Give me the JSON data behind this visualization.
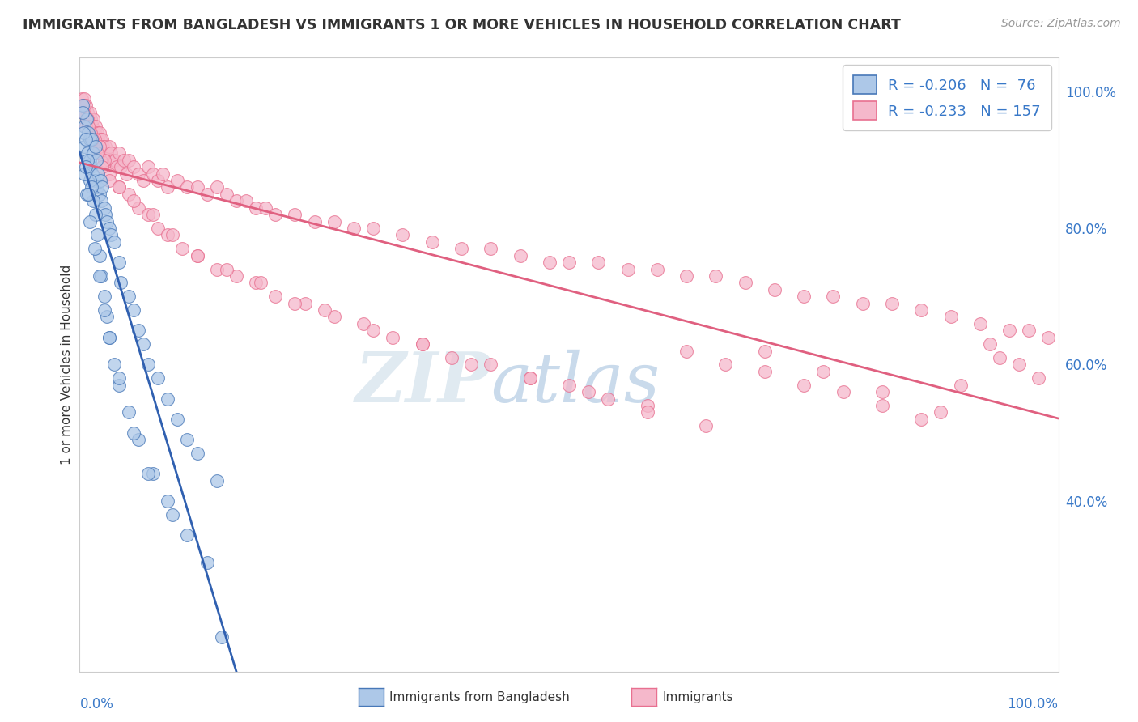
{
  "title": "IMMIGRANTS FROM BANGLADESH VS IMMIGRANTS 1 OR MORE VEHICLES IN HOUSEHOLD CORRELATION CHART",
  "source": "Source: ZipAtlas.com",
  "ylabel": "1 or more Vehicles in Household",
  "watermark_zip": "ZIP",
  "watermark_atlas": "atlas",
  "legend_blue_label": "Immigrants from Bangladesh",
  "legend_pink_label": "Immigrants",
  "legend_blue_R": "R = -0.206",
  "legend_blue_N": "N =  76",
  "legend_pink_R": "R = -0.233",
  "legend_pink_N": "N = 157",
  "blue_fill": "#adc8e8",
  "blue_edge": "#4878b8",
  "blue_line": "#3060b0",
  "pink_fill": "#f5b8cb",
  "pink_edge": "#e87090",
  "pink_line": "#e06080",
  "diag_color": "#a8c8e0",
  "axis_label_color": "#3878c8",
  "title_color": "#333333",
  "bg_color": "#ffffff",
  "grid_color": "#d8d8d8",
  "ytick_labels": [
    "40.0%",
    "60.0%",
    "80.0%",
    "100.0%"
  ],
  "ytick_vals": [
    40,
    60,
    80,
    100
  ],
  "xlim": [
    0,
    100
  ],
  "ylim": [
    15,
    105
  ],
  "blue_x": [
    0.3,
    0.5,
    0.5,
    0.7,
    0.8,
    0.9,
    1.0,
    1.0,
    1.1,
    1.2,
    1.3,
    1.4,
    1.5,
    1.6,
    1.7,
    1.8,
    1.9,
    2.0,
    2.1,
    2.2,
    2.3,
    2.5,
    2.6,
    2.8,
    3.0,
    3.2,
    3.5,
    4.0,
    4.2,
    5.0,
    5.5,
    6.0,
    6.5,
    7.0,
    8.0,
    9.0,
    10.0,
    11.0,
    12.0,
    14.0,
    0.4,
    0.6,
    0.8,
    1.0,
    1.2,
    1.4,
    1.6,
    1.8,
    2.0,
    2.2,
    2.5,
    2.8,
    3.0,
    3.5,
    4.0,
    5.0,
    6.0,
    7.5,
    9.0,
    11.0,
    0.5,
    0.7,
    1.0,
    1.5,
    2.0,
    2.5,
    3.0,
    4.0,
    5.5,
    7.0,
    9.5,
    13.0,
    0.3,
    0.6,
    0.9,
    14.5
  ],
  "blue_y": [
    98,
    95,
    92,
    96,
    91,
    94,
    93,
    90,
    89,
    93,
    88,
    91,
    87,
    92,
    90,
    86,
    88,
    85,
    87,
    84,
    86,
    83,
    82,
    81,
    80,
    79,
    78,
    75,
    72,
    70,
    68,
    65,
    63,
    60,
    58,
    55,
    52,
    49,
    47,
    43,
    94,
    93,
    90,
    87,
    86,
    84,
    82,
    79,
    76,
    73,
    70,
    67,
    64,
    60,
    57,
    53,
    49,
    44,
    40,
    35,
    88,
    85,
    81,
    77,
    73,
    68,
    64,
    58,
    50,
    44,
    38,
    31,
    97,
    89,
    85,
    20
  ],
  "pink_x": [
    0.2,
    0.3,
    0.4,
    0.5,
    0.5,
    0.6,
    0.7,
    0.8,
    0.9,
    1.0,
    1.0,
    1.1,
    1.2,
    1.3,
    1.4,
    1.5,
    1.6,
    1.7,
    1.8,
    1.9,
    2.0,
    2.1,
    2.2,
    2.3,
    2.4,
    2.5,
    2.6,
    2.7,
    2.8,
    3.0,
    3.0,
    3.2,
    3.4,
    3.6,
    3.8,
    4.0,
    4.2,
    4.5,
    4.8,
    5.0,
    5.5,
    6.0,
    6.5,
    7.0,
    7.5,
    8.0,
    8.5,
    9.0,
    10.0,
    11.0,
    12.0,
    13.0,
    14.0,
    15.0,
    16.0,
    17.0,
    18.0,
    19.0,
    20.0,
    22.0,
    24.0,
    26.0,
    28.0,
    30.0,
    33.0,
    36.0,
    39.0,
    42.0,
    45.0,
    48.0,
    50.0,
    53.0,
    56.0,
    59.0,
    62.0,
    65.0,
    68.0,
    71.0,
    74.0,
    77.0,
    80.0,
    83.0,
    86.0,
    89.0,
    92.0,
    95.0,
    97.0,
    99.0,
    0.4,
    0.6,
    0.8,
    1.1,
    1.5,
    2.0,
    2.5,
    3.0,
    4.0,
    5.0,
    6.0,
    7.0,
    8.0,
    9.0,
    10.5,
    12.0,
    14.0,
    16.0,
    18.0,
    20.0,
    23.0,
    26.0,
    29.0,
    32.0,
    35.0,
    38.0,
    42.0,
    46.0,
    50.0,
    54.0,
    58.0,
    62.0,
    66.0,
    70.0,
    74.0,
    78.0,
    82.0,
    86.0,
    90.0,
    94.0,
    0.5,
    0.9,
    1.3,
    1.8,
    2.3,
    3.0,
    4.0,
    5.5,
    7.5,
    9.5,
    12.0,
    15.0,
    18.5,
    22.0,
    25.0,
    30.0,
    35.0,
    40.0,
    46.0,
    52.0,
    58.0,
    64.0,
    70.0,
    76.0,
    82.0,
    88.0,
    93.0,
    96.0,
    98.0
  ],
  "pink_y": [
    99,
    98,
    97,
    99,
    97,
    98,
    96,
    97,
    96,
    97,
    95,
    96,
    95,
    95,
    96,
    94,
    95,
    93,
    94,
    93,
    94,
    93,
    92,
    93,
    92,
    91,
    92,
    91,
    91,
    92,
    90,
    91,
    90,
    90,
    89,
    91,
    89,
    90,
    88,
    90,
    89,
    88,
    87,
    89,
    88,
    87,
    88,
    86,
    87,
    86,
    86,
    85,
    86,
    85,
    84,
    84,
    83,
    83,
    82,
    82,
    81,
    81,
    80,
    80,
    79,
    78,
    77,
    77,
    76,
    75,
    75,
    75,
    74,
    74,
    73,
    73,
    72,
    71,
    70,
    70,
    69,
    69,
    68,
    67,
    66,
    65,
    65,
    64,
    97,
    95,
    96,
    94,
    93,
    92,
    90,
    88,
    86,
    85,
    83,
    82,
    80,
    79,
    77,
    76,
    74,
    73,
    72,
    70,
    69,
    67,
    66,
    64,
    63,
    61,
    60,
    58,
    57,
    55,
    54,
    62,
    60,
    59,
    57,
    56,
    54,
    52,
    57,
    61,
    98,
    95,
    93,
    91,
    89,
    87,
    86,
    84,
    82,
    79,
    76,
    74,
    72,
    69,
    68,
    65,
    63,
    60,
    58,
    56,
    53,
    51,
    62,
    59,
    56,
    53,
    63,
    60,
    58
  ]
}
